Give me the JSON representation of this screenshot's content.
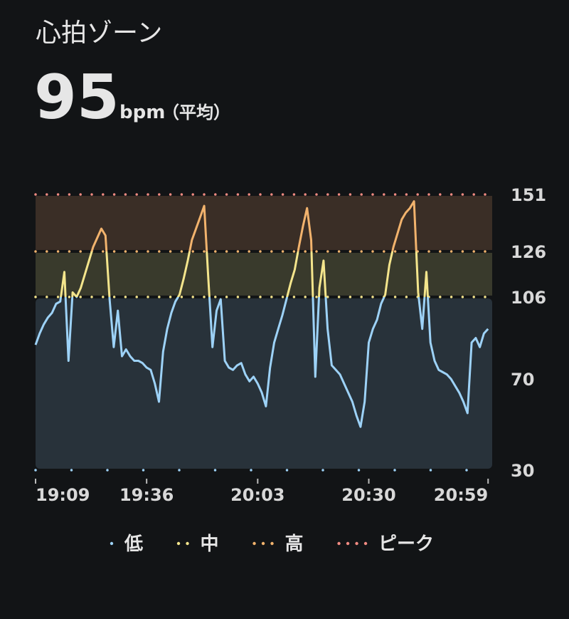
{
  "chart_data": {
    "type": "line",
    "title": "心拍ゾーン",
    "average": {
      "value": 95,
      "unit": "bpm",
      "note": "（平均）"
    },
    "x": [
      "19:09",
      "19:10",
      "19:11",
      "19:12",
      "19:13",
      "19:14",
      "19:15",
      "19:16",
      "19:17",
      "19:18",
      "19:19",
      "19:20",
      "19:21",
      "19:22",
      "19:23",
      "19:24",
      "19:25",
      "19:26",
      "19:27",
      "19:28",
      "19:29",
      "19:30",
      "19:31",
      "19:32",
      "19:33",
      "19:34",
      "19:35",
      "19:36",
      "19:37",
      "19:38",
      "19:39",
      "19:40",
      "19:41",
      "19:42",
      "19:43",
      "19:44",
      "19:45",
      "19:46",
      "19:47",
      "19:48",
      "19:49",
      "19:50",
      "19:51",
      "19:52",
      "19:53",
      "19:54",
      "19:55",
      "19:56",
      "19:57",
      "19:58",
      "19:59",
      "20:00",
      "20:01",
      "20:02",
      "20:03",
      "20:04",
      "20:05",
      "20:06",
      "20:07",
      "20:08",
      "20:09",
      "20:10",
      "20:11",
      "20:12",
      "20:13",
      "20:14",
      "20:15",
      "20:16",
      "20:17",
      "20:18",
      "20:19",
      "20:20",
      "20:21",
      "20:22",
      "20:23",
      "20:24",
      "20:25",
      "20:26",
      "20:27",
      "20:28",
      "20:29",
      "20:30",
      "20:31",
      "20:32",
      "20:33",
      "20:34",
      "20:35",
      "20:36",
      "20:37",
      "20:38",
      "20:39",
      "20:40",
      "20:41",
      "20:42",
      "20:43",
      "20:44",
      "20:45",
      "20:46",
      "20:47",
      "20:48",
      "20:49",
      "20:50",
      "20:51",
      "20:52",
      "20:53",
      "20:54",
      "20:55",
      "20:56",
      "20:57",
      "20:58",
      "20:59"
    ],
    "values": [
      85,
      90,
      94,
      97,
      99,
      103,
      104,
      117,
      78,
      108,
      106,
      110,
      116,
      122,
      128,
      132,
      136,
      133,
      105,
      84,
      100,
      80,
      83,
      80,
      78,
      78,
      77,
      75,
      74,
      68,
      60,
      82,
      92,
      99,
      104,
      107,
      114,
      122,
      131,
      136,
      141,
      146,
      114,
      84,
      100,
      105,
      78,
      75,
      74,
      76,
      77,
      72,
      69,
      71,
      68,
      64,
      58,
      75,
      86,
      92,
      98,
      105,
      112,
      118,
      128,
      137,
      145,
      131,
      71,
      110,
      122,
      92,
      76,
      74,
      72,
      68,
      64,
      60,
      54,
      49,
      60,
      86,
      92,
      96,
      103,
      107,
      120,
      128,
      134,
      140,
      143,
      145,
      148,
      108,
      92,
      117,
      86,
      78,
      74,
      73,
      72,
      70,
      67,
      64,
      60,
      55,
      86,
      88,
      84,
      90,
      92
    ],
    "xlim": [
      "19:09",
      "21:00"
    ],
    "xticks": [
      "19:09",
      "19:36",
      "20:03",
      "20:30",
      "20:59"
    ],
    "ylim": [
      30,
      151
    ],
    "yticks": [
      30,
      70,
      106,
      126,
      151
    ],
    "zones": [
      {
        "name": "低",
        "color": "#9dd2f7",
        "band": "#28323a",
        "min": 30,
        "max": 106
      },
      {
        "name": "中",
        "color": "#f4e58c",
        "band": "#393a2c",
        "min": 106,
        "max": 126
      },
      {
        "name": "高",
        "color": "#f2b36d",
        "band": "#3a2e26",
        "min": 126,
        "max": 151
      },
      {
        "name": "ピーク",
        "color": "#f28b82",
        "min": 151
      }
    ]
  }
}
